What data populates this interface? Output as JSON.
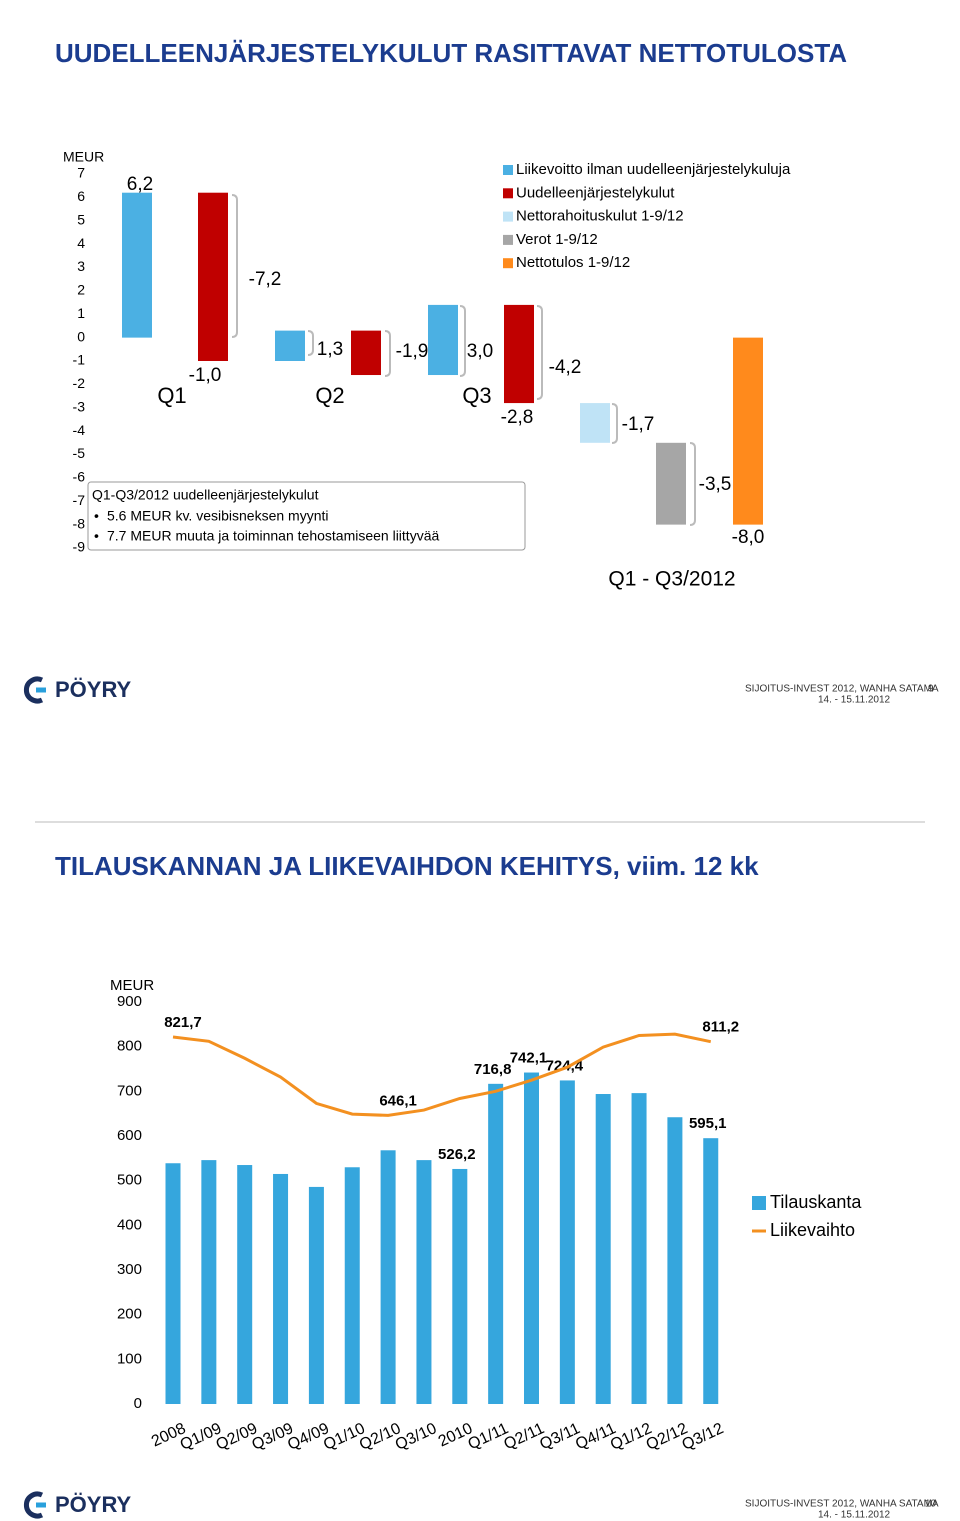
{
  "slides": [
    {
      "title": "UUDELLEENJÄRJESTELYKULUT RASITTAVAT NETTOTULOSTA",
      "logo": "PÖYRY",
      "event": "SIJOITUS-INVEST 2012, WANHA SATAMA",
      "date": "14. - 15.11.2012",
      "page": 9
    },
    {
      "title": "TILAUSKANNAN JA LIIKEVAIHDON KEHITYS, viim. 12 kk",
      "logo": "PÖYRY",
      "event": "SIJOITUS-INVEST 2012, WANHA SATAMA",
      "date": "14. - 15.11.2012",
      "page": 10
    }
  ],
  "chart_data": [
    {
      "type": "waterfall",
      "y_label": "MEUR",
      "ylim": [
        -9,
        7
      ],
      "yticks": [
        -9,
        -8,
        -7,
        -6,
        -5,
        -4,
        -3,
        -2,
        -1,
        0,
        1,
        2,
        3,
        4,
        5,
        6,
        7
      ],
      "grid": false,
      "legend": "top-right",
      "categories": [
        null,
        null,
        null,
        null,
        null,
        null,
        null,
        null,
        null
      ],
      "series": [
        {
          "name": "Liikevoitto ilman uudelleenjärjestelykuluja",
          "color": "#4bb0e3",
          "values": [
            6.2,
            null,
            1.3,
            null,
            3.0,
            null,
            null,
            null,
            null
          ],
          "value_labels": [
            "6,2",
            null,
            "1,3",
            null,
            "3,0",
            null,
            null,
            null,
            null
          ]
        },
        {
          "name": "Uudelleenjärjestelykulut",
          "color": "#c00000",
          "values": [
            null,
            -7.2,
            null,
            -1.9,
            null,
            -4.2,
            null,
            null,
            null
          ],
          "value_labels": [
            null,
            "-7,2",
            null,
            "-1,9",
            null,
            "-4,2",
            null,
            null,
            null
          ]
        },
        {
          "name": "Nettorahoituskulut 1-9/12",
          "color": "#bfe3f6",
          "values": [
            null,
            null,
            null,
            null,
            null,
            null,
            -1.7,
            null,
            null
          ],
          "value_labels": [
            null,
            null,
            null,
            null,
            null,
            null,
            "-1,7",
            null,
            null
          ]
        },
        {
          "name": "Verot 1-9/12",
          "color": "#a6a6a6",
          "values": [
            null,
            null,
            null,
            null,
            null,
            null,
            null,
            -3.5,
            null
          ],
          "value_labels": [
            null,
            null,
            null,
            null,
            null,
            null,
            null,
            "-3,5",
            null
          ]
        },
        {
          "name": "Nettotulos 1-9/12",
          "color": "#ff8a1c",
          "total": true,
          "values": [
            null,
            null,
            null,
            null,
            null,
            null,
            null,
            null,
            -8.0
          ],
          "value_labels": [
            null,
            null,
            null,
            null,
            null,
            null,
            null,
            null,
            "-8,0"
          ]
        }
      ],
      "annotations": [
        {
          "value": -1.0,
          "label": "-1,0"
        },
        {
          "value": -2.8,
          "label": "-2,8"
        }
      ],
      "groups": [
        "Q1",
        "Q2",
        "Q3",
        "Q1 - Q3/2012"
      ],
      "note": {
        "title": "Q1-Q3/2012 uudelleenjärjestelykulut",
        "bullets": [
          "5.6 MEUR kv. vesibisneksen myynti",
          "7.7 MEUR muuta ja toiminnan tehostamiseen liittyvää"
        ]
      }
    },
    {
      "type": "bar",
      "y_label": "MEUR",
      "ylim": [
        0,
        900
      ],
      "yticks": [
        0,
        100,
        200,
        300,
        400,
        500,
        600,
        700,
        800,
        900
      ],
      "grid": false,
      "legend": "right",
      "categories": [
        "2008",
        "Q1/09",
        "Q2/09",
        "Q3/09",
        "Q4/09",
        "Q1/10",
        "Q2/10",
        "Q3/10",
        "2010",
        "Q1/11",
        "Q2/11",
        "Q3/11",
        "Q4/11",
        "Q1/12",
        "Q2/12",
        "Q3/12"
      ],
      "series": [
        {
          "name": "Tilauskanta",
          "type": "bar",
          "color": "#35a6dd",
          "values": [
            539,
            546,
            535,
            515,
            486,
            530,
            568,
            546,
            526.2,
            716.8,
            742.1,
            724.4,
            694,
            696,
            642,
            595.1
          ],
          "value_labels": [
            null,
            null,
            null,
            null,
            null,
            null,
            null,
            null,
            "526,2",
            "716,8",
            "742,1",
            "724,4",
            null,
            null,
            null,
            "595,1"
          ]
        },
        {
          "name": "Liikevaihto",
          "type": "line",
          "color": "#f39020",
          "values": [
            821.7,
            812,
            774,
            732,
            673,
            649,
            646.1,
            658,
            684,
            700,
            725,
            754,
            799,
            825,
            828,
            811.2
          ],
          "value_labels": [
            "821,7",
            null,
            null,
            null,
            null,
            null,
            "646,1",
            null,
            null,
            null,
            null,
            null,
            null,
            null,
            null,
            "811,2"
          ]
        }
      ]
    }
  ]
}
